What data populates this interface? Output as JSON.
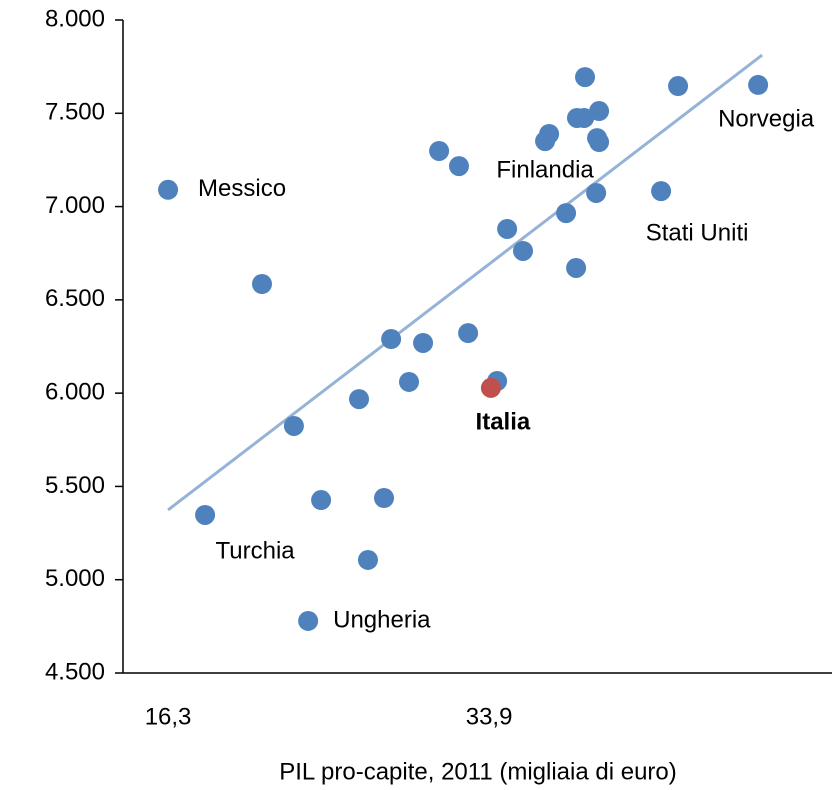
{
  "chart_data": {
    "type": "scatter",
    "xlabel": "PIL pro-capite, 2011 (migliaia di euro)",
    "xlim": [
      13.83,
      52.7
    ],
    "xticks": [
      {
        "value": 16.3,
        "label": "16,3"
      },
      {
        "value": 33.9,
        "label": "33,9"
      }
    ],
    "ylim": [
      4500,
      8000
    ],
    "yticks": [
      {
        "value": 4500,
        "label": "4.500"
      },
      {
        "value": 5000,
        "label": "5.000"
      },
      {
        "value": 5500,
        "label": "5.500"
      },
      {
        "value": 6000,
        "label": "6.000"
      },
      {
        "value": 6500,
        "label": "6.500"
      },
      {
        "value": 7000,
        "label": "7.000"
      },
      {
        "value": 7500,
        "label": "7.500"
      },
      {
        "value": 8000,
        "label": "8.000"
      }
    ],
    "grid": false,
    "series": [
      {
        "color": "#4f81bd",
        "x": [
          16.3,
          21.45,
          18.33,
          23.2,
          24.69,
          23.98,
          26.77,
          27.26,
          28.14,
          28.53,
          29.51,
          30.28,
          31.16,
          32.25,
          32.75,
          34.34,
          34.89,
          35.76,
          36.97,
          37.19,
          38.12,
          38.67,
          38.72,
          39.16,
          39.11,
          39.93,
          39.82,
          39.93,
          39.77,
          43.33,
          44.26,
          48.65
        ],
        "values": [
          7090,
          6585,
          5347,
          5824,
          5427,
          4779,
          5968,
          5106,
          5438,
          6290,
          6060,
          6269,
          7298,
          7217,
          6322,
          6065,
          6880,
          6762,
          7351,
          7389,
          6965,
          6671,
          7475,
          7694,
          7475,
          7512,
          7367,
          7346,
          7073,
          7083,
          7646,
          7652
        ],
        "labels": [
          "Messico",
          null,
          "Turchia",
          null,
          null,
          "Ungheria",
          null,
          null,
          null,
          null,
          null,
          null,
          null,
          null,
          null,
          null,
          null,
          null,
          "Finlandia",
          null,
          null,
          null,
          null,
          null,
          null,
          null,
          null,
          null,
          null,
          "Stati Uniti",
          null,
          "Norvegia"
        ]
      },
      {
        "color": "#c0504d",
        "bold": true,
        "x": [
          34.0
        ],
        "values": [
          6028
        ],
        "labels": [
          "Italia"
        ]
      }
    ],
    "trendline": {
      "color": "#95b3d7",
      "x": [
        16.3,
        48.87
      ],
      "values": [
        5374,
        7812
      ]
    }
  }
}
